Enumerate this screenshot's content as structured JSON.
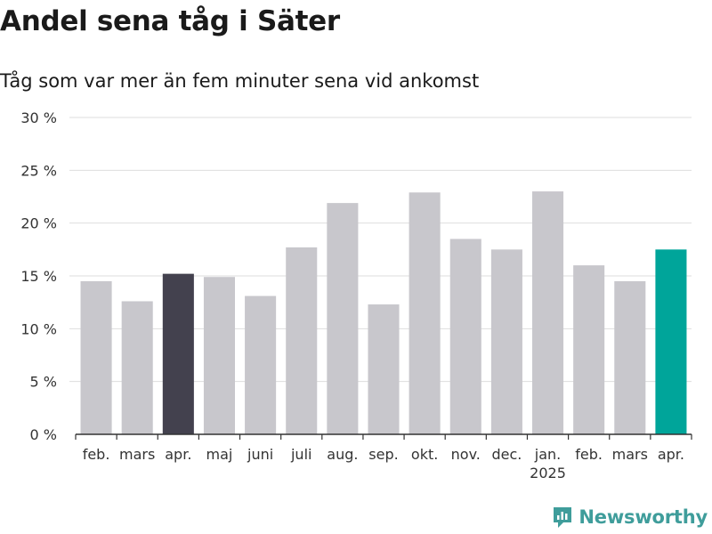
{
  "title": "Andel sena tåg i Säter",
  "subtitle": "Tåg som var mer än fem minuter sena vid ankomst",
  "brand": {
    "name": "Newsworthy",
    "color": "#3f9d9b"
  },
  "chart_data": {
    "type": "bar",
    "categories": [
      "feb.",
      "mars",
      "apr.",
      "maj",
      "juni",
      "juli",
      "aug.",
      "sep.",
      "okt.",
      "nov.",
      "dec.",
      "jan.",
      "feb.",
      "mars",
      "apr."
    ],
    "year_labels": [
      {
        "index": 11,
        "text": "2025"
      }
    ],
    "values": [
      14.5,
      12.6,
      15.2,
      14.9,
      13.1,
      17.7,
      21.9,
      12.3,
      22.9,
      18.5,
      17.5,
      23.0,
      16.0,
      14.5,
      17.5
    ],
    "colors": [
      "#c8c7cc",
      "#c8c7cc",
      "#43414e",
      "#c8c7cc",
      "#c8c7cc",
      "#c8c7cc",
      "#c8c7cc",
      "#c8c7cc",
      "#c8c7cc",
      "#c8c7cc",
      "#c8c7cc",
      "#c8c7cc",
      "#c8c7cc",
      "#c8c7cc",
      "#00a59a"
    ],
    "ylim": [
      0,
      30
    ],
    "yticks": [
      0,
      5,
      10,
      15,
      20,
      25,
      30
    ],
    "ytick_suffix": " %",
    "grid": true,
    "xlabel": "",
    "ylabel": ""
  }
}
